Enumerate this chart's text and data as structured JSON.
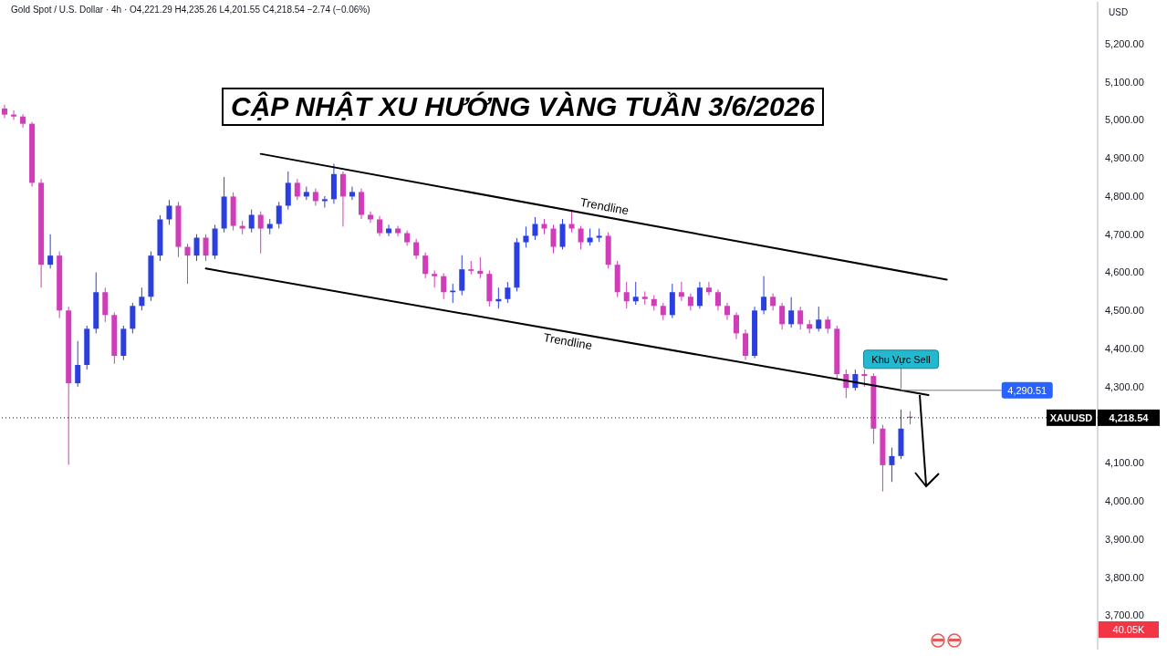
{
  "chart_data": {
    "type": "candlestick",
    "title": "CẬP NHẬT XU HƯỚNG VÀNG TUẦN 3/6/2026",
    "subtitle": "Gold Spot / U.S. Dollar · 4h · O4,221.29 H4,235.26 L4,201.55 C4,218.54 −2.74 (−0.06%)",
    "ylabel": "USD",
    "tick_labels": "y",
    "categories": [
      null,
      null,
      null,
      null,
      null,
      null,
      null,
      null,
      null,
      null,
      null,
      null,
      null,
      null,
      null,
      null,
      null,
      null,
      null,
      null,
      null,
      null,
      null,
      null,
      null,
      null,
      null,
      null,
      null,
      null,
      null,
      null,
      null,
      null,
      null,
      null,
      null,
      null,
      null,
      null,
      null,
      null,
      null,
      null,
      null,
      null,
      null,
      null,
      null,
      null,
      null,
      null,
      null,
      null,
      null,
      null,
      null,
      null,
      null,
      null,
      null,
      null,
      null,
      null,
      null,
      null,
      null,
      null,
      null,
      null,
      null,
      null,
      null,
      null,
      null,
      null,
      null,
      null,
      null,
      null,
      null,
      null,
      null,
      null,
      null,
      null,
      null,
      null,
      null,
      null,
      null,
      null,
      null,
      null,
      null,
      null,
      null,
      null,
      null,
      null,
      null,
      null,
      null,
      null,
      null,
      null,
      null,
      null,
      null,
      null,
      null,
      null,
      null,
      null,
      null,
      null,
      null,
      null,
      null,
      null
    ],
    "ylim": [
      3610,
      5310
    ],
    "yticks": [
      {
        "value": 3700,
        "label": "3,700.00"
      },
      {
        "value": 3800,
        "label": "3,800.00"
      },
      {
        "value": 3900,
        "label": "3,900.00"
      },
      {
        "value": 4000,
        "label": "4,000.00"
      },
      {
        "value": 4100,
        "label": "4,100.00"
      },
      {
        "value": 4300,
        "label": "4,300.00"
      },
      {
        "value": 4400,
        "label": "4,400.00"
      },
      {
        "value": 4500,
        "label": "4,500.00"
      },
      {
        "value": 4600,
        "label": "4,600.00"
      },
      {
        "value": 4700,
        "label": "4,700.00"
      },
      {
        "value": 4800,
        "label": "4,800.00"
      },
      {
        "value": 4900,
        "label": "4,900.00"
      },
      {
        "value": 5000,
        "label": "5,000.00"
      },
      {
        "value": 5100,
        "label": "5,100.00"
      },
      {
        "value": 5200,
        "label": "5,200.00"
      }
    ],
    "series": [
      {
        "colors": [
          "#d13cb8",
          "#d13cb8",
          "#d13cb8",
          "#d13cb8",
          "#d13cb8",
          "#2b3fe0",
          "#d13cb8",
          "#d13cb8",
          "#2b3fe0",
          "#2b3fe0",
          "#2b3fe0",
          "#d13cb8",
          "#d13cb8",
          "#2b3fe0",
          "#2b3fe0",
          "#2b3fe0",
          "#2b3fe0",
          "#2b3fe0",
          "#2b3fe0",
          "#d13cb8",
          "#d13cb8",
          "#2b3fe0",
          "#d13cb8",
          "#2b3fe0",
          "#2b3fe0",
          "#d13cb8",
          "#d13cb8",
          "#2b3fe0",
          "#d13cb8",
          "#2b3fe0",
          "#2b3fe0",
          "#2b3fe0",
          "#d13cb8",
          "#2b3fe0",
          "#d13cb8",
          "#2b3fe0",
          "#2b3fe0",
          "#d13cb8",
          "#2b3fe0",
          "#d13cb8",
          "#d13cb8",
          "#d13cb8",
          "#2b3fe0",
          "#d13cb8",
          "#d13cb8",
          "#d13cb8",
          "#d13cb8",
          "#d13cb8",
          "#d13cb8",
          "#2b3fe0",
          "#2b3fe0",
          "#d13cb8",
          "#d13cb8",
          "#d13cb8",
          "#2b3fe0",
          "#2b3fe0",
          "#2b3fe0",
          "#2b3fe0",
          "#2b3fe0",
          "#d13cb8",
          "#d13cb8",
          "#2b3fe0",
          "#d13cb8",
          "#d13cb8",
          "#2b3fe0",
          "#2b3fe0",
          "#d13cb8",
          "#d13cb8",
          "#d13cb8",
          "#2b3fe0",
          "#d13cb8",
          "#d13cb8",
          "#d13cb8",
          "#2b3fe0",
          "#d13cb8",
          "#d13cb8",
          "#2b3fe0",
          "#d13cb8",
          "#d13cb8",
          "#d13cb8",
          "#d13cb8",
          "#d13cb8",
          "#2b3fe0",
          "#2b3fe0",
          "#d13cb8",
          "#d13cb8",
          "#2b3fe0",
          "#d13cb8",
          "#d13cb8",
          "#2b3fe0",
          "#d13cb8",
          "#d13cb8",
          "#d13cb8",
          "#2b3fe0",
          "#d13cb8",
          "#d13cb8",
          "#d13cb8",
          "#2b3fe0",
          "#2b3fe0",
          "#d13cb8",
          null,
          null,
          null,
          null,
          null,
          null,
          null,
          null,
          null,
          null,
          null,
          null,
          null,
          null,
          null,
          null,
          null,
          null,
          null,
          null
        ],
        "ohlc": [
          [
            5030,
            5040,
            5005,
            5014
          ],
          [
            5014,
            5025,
            5000,
            5009
          ],
          [
            5009,
            5015,
            4980,
            4990
          ],
          [
            4990,
            4995,
            4825,
            4835
          ],
          [
            4835,
            4845,
            4560,
            4620
          ],
          [
            4620,
            4700,
            4610,
            4644
          ],
          [
            4644,
            4655,
            4480,
            4500
          ],
          [
            4500,
            4510,
            4095,
            4309
          ],
          [
            4309,
            4420,
            4300,
            4357
          ],
          [
            4357,
            4460,
            4345,
            4452
          ],
          [
            4452,
            4600,
            4440,
            4548
          ],
          [
            4548,
            4560,
            4470,
            4488
          ],
          [
            4488,
            4495,
            4360,
            4381
          ],
          [
            4381,
            4460,
            4370,
            4452
          ],
          [
            4452,
            4520,
            4440,
            4512
          ],
          [
            4512,
            4560,
            4500,
            4536
          ],
          [
            4536,
            4655,
            4525,
            4644
          ],
          [
            4644,
            4750,
            4630,
            4739
          ],
          [
            4739,
            4790,
            4725,
            4775
          ],
          [
            4775,
            4785,
            4640,
            4667
          ],
          [
            4667,
            4675,
            4570,
            4644
          ],
          [
            4644,
            4700,
            4630,
            4691
          ],
          [
            4691,
            4700,
            4630,
            4644
          ],
          [
            4644,
            4725,
            4635,
            4715
          ],
          [
            4715,
            4850,
            4705,
            4799
          ],
          [
            4799,
            4810,
            4710,
            4722
          ],
          [
            4722,
            4735,
            4700,
            4715
          ],
          [
            4715,
            4765,
            4705,
            4751
          ],
          [
            4751,
            4760,
            4650,
            4715
          ],
          [
            4715,
            4740,
            4700,
            4727
          ],
          [
            4727,
            4785,
            4715,
            4775
          ],
          [
            4775,
            4865,
            4765,
            4835
          ],
          [
            4835,
            4845,
            4790,
            4799
          ],
          [
            4799,
            4825,
            4790,
            4811
          ],
          [
            4811,
            4820,
            4775,
            4787
          ],
          [
            4787,
            4800,
            4770,
            4792
          ],
          [
            4792,
            4885,
            4780,
            4858
          ],
          [
            4858,
            4865,
            4720,
            4799
          ],
          [
            4799,
            4825,
            4790,
            4811
          ],
          [
            4811,
            4820,
            4740,
            4751
          ],
          [
            4751,
            4760,
            4730,
            4739
          ],
          [
            4739,
            4748,
            4695,
            4703
          ],
          [
            4703,
            4725,
            4695,
            4715
          ],
          [
            4715,
            4722,
            4695,
            4703
          ],
          [
            4703,
            4710,
            4670,
            4679
          ],
          [
            4679,
            4688,
            4635,
            4644
          ],
          [
            4644,
            4652,
            4585,
            4596
          ],
          [
            4596,
            4605,
            4560,
            4590
          ],
          [
            4590,
            4598,
            4530,
            4548
          ],
          [
            4548,
            4570,
            4520,
            4552
          ],
          [
            4552,
            4645,
            4540,
            4608
          ],
          [
            4608,
            4630,
            4595,
            4604
          ],
          [
            4604,
            4640,
            4585,
            4596
          ],
          [
            4596,
            4605,
            4510,
            4524
          ],
          [
            4524,
            4560,
            4505,
            4530
          ],
          [
            4530,
            4575,
            4520,
            4560
          ],
          [
            4560,
            4690,
            4550,
            4679
          ],
          [
            4679,
            4720,
            4665,
            4696
          ],
          [
            4696,
            4745,
            4685,
            4727
          ],
          [
            4727,
            4740,
            4700,
            4715
          ],
          [
            4715,
            4725,
            4650,
            4667
          ],
          [
            4667,
            4740,
            4660,
            4727
          ],
          [
            4727,
            4765,
            4705,
            4715
          ],
          [
            4715,
            4722,
            4660,
            4679
          ],
          [
            4679,
            4715,
            4670,
            4691
          ],
          [
            4691,
            4715,
            4680,
            4696
          ],
          [
            4696,
            4705,
            4610,
            4620
          ],
          [
            4620,
            4630,
            4535,
            4548
          ],
          [
            4548,
            4575,
            4505,
            4524
          ],
          [
            4524,
            4575,
            4515,
            4536
          ],
          [
            4536,
            4550,
            4515,
            4530
          ],
          [
            4530,
            4540,
            4500,
            4512
          ],
          [
            4512,
            4520,
            4475,
            4488
          ],
          [
            4488,
            4570,
            4480,
            4548
          ],
          [
            4548,
            4575,
            4525,
            4536
          ],
          [
            4536,
            4545,
            4500,
            4512
          ],
          [
            4512,
            4575,
            4505,
            4560
          ],
          [
            4560,
            4575,
            4540,
            4548
          ],
          [
            4548,
            4555,
            4500,
            4512
          ],
          [
            4512,
            4520,
            4475,
            4488
          ],
          [
            4488,
            4495,
            4425,
            4440
          ],
          [
            4440,
            4450,
            4370,
            4381
          ],
          [
            4381,
            4510,
            4375,
            4500
          ],
          [
            4500,
            4590,
            4490,
            4536
          ],
          [
            4536,
            4545,
            4500,
            4512
          ],
          [
            4512,
            4520,
            4450,
            4464
          ],
          [
            4464,
            4535,
            4455,
            4500
          ],
          [
            4500,
            4510,
            4450,
            4464
          ],
          [
            4464,
            4475,
            4440,
            4452
          ],
          [
            4452,
            4510,
            4445,
            4476
          ],
          [
            4476,
            4485,
            4440,
            4452
          ],
          [
            4452,
            4460,
            4320,
            4333
          ],
          [
            4333,
            4345,
            4270,
            4297
          ],
          [
            4297,
            4345,
            4290,
            4333
          ],
          [
            4333,
            4345,
            4300,
            4328
          ],
          [
            4328,
            4335,
            4150,
            4190
          ],
          [
            4190,
            4200,
            4025,
            4094
          ],
          [
            4094,
            4140,
            4050,
            4118
          ],
          [
            4118,
            4240,
            4110,
            4190
          ],
          [
            4221.29,
            4235.26,
            4201.55,
            4218.54
          ],
          null,
          null,
          null,
          null,
          null,
          null,
          null,
          null,
          null,
          null,
          null,
          null,
          null,
          null,
          null,
          null,
          null,
          null,
          null,
          null
        ]
      },
      {
        "type": "line",
        "name": "Trendline",
        "color": "#000000",
        "values": [
          null,
          null,
          null,
          null,
          null,
          null,
          null,
          null,
          null,
          null,
          null,
          null,
          null,
          null,
          null,
          null,
          null,
          null,
          null,
          null,
          null,
          null,
          null,
          null,
          null,
          null,
          null,
          null,
          4911,
          null,
          null,
          null,
          null,
          null,
          null,
          null,
          null,
          null,
          null,
          null,
          null,
          null,
          null,
          null,
          null,
          null,
          null,
          null,
          null,
          null,
          null,
          null,
          null,
          null,
          null,
          null,
          null,
          null,
          null,
          null,
          null,
          null,
          null,
          null,
          null,
          null,
          null,
          null,
          null,
          null,
          null,
          null,
          null,
          null,
          null,
          null,
          null,
          null,
          null,
          null,
          null,
          null,
          null,
          null,
          null,
          null,
          null,
          null,
          null,
          null,
          null,
          null,
          null,
          null,
          null,
          null,
          null,
          null,
          null,
          null,
          null,
          null,
          null,
          4581,
          null,
          null,
          null,
          null,
          null,
          null,
          null,
          null,
          null,
          null,
          null,
          null,
          null,
          null,
          null,
          null
        ]
      },
      {
        "type": "line",
        "name": "Trendline",
        "color": "#000000",
        "values": [
          null,
          null,
          null,
          null,
          null,
          null,
          null,
          null,
          null,
          null,
          null,
          null,
          null,
          null,
          null,
          null,
          null,
          null,
          null,
          null,
          null,
          null,
          4610,
          null,
          null,
          null,
          null,
          null,
          null,
          null,
          null,
          null,
          null,
          null,
          null,
          null,
          null,
          null,
          null,
          null,
          null,
          null,
          null,
          null,
          null,
          null,
          null,
          null,
          null,
          null,
          null,
          null,
          null,
          null,
          null,
          null,
          null,
          null,
          null,
          null,
          null,
          null,
          null,
          null,
          null,
          null,
          null,
          null,
          null,
          null,
          null,
          null,
          null,
          null,
          null,
          null,
          null,
          null,
          null,
          null,
          null,
          null,
          null,
          null,
          null,
          null,
          null,
          null,
          null,
          null,
          null,
          null,
          null,
          null,
          null,
          null,
          null,
          null,
          null,
          null,
          null,
          4278,
          null,
          null,
          null,
          null,
          null,
          null,
          null,
          null,
          null,
          null,
          null,
          null,
          null,
          null,
          null,
          null,
          null,
          null
        ]
      }
    ],
    "ref_lines": [
      {
        "axis": "y",
        "value": 4218.54,
        "label": "XAUUSD 4,218.54",
        "color": "#131722",
        "line_style": "dotted"
      },
      {
        "axis": "y",
        "value": 4290.51,
        "label": "4,290.51",
        "color": "#787b86",
        "line_style": "solid"
      }
    ],
    "annotations": [
      "Khu Vực Sell",
      "40.05K"
    ]
  }
}
